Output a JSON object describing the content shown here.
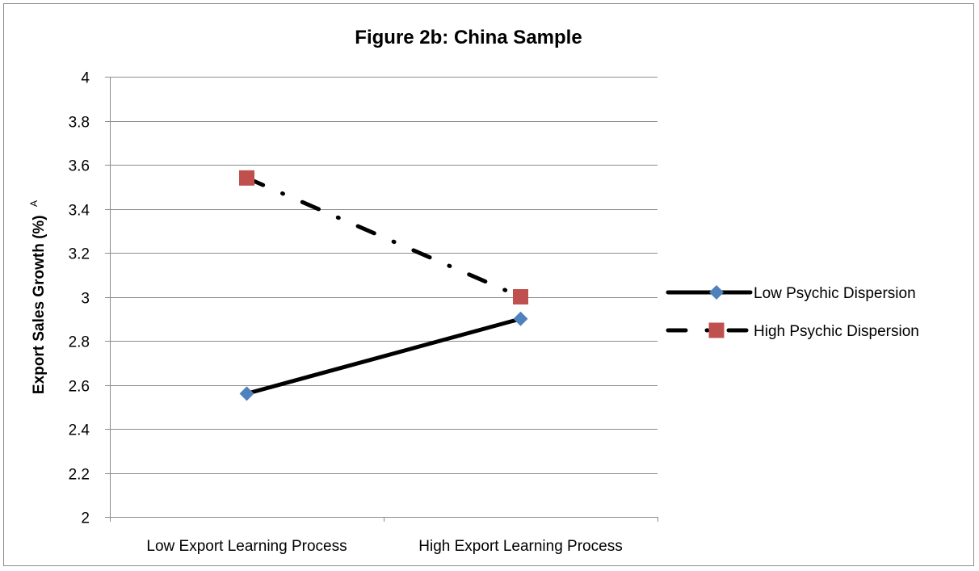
{
  "chart_data": {
    "type": "line",
    "title": "Figure 2b: China Sample",
    "xlabel": "",
    "ylabel": "Export Sales Growth (%)",
    "ylabel_superscript": "A",
    "categories": [
      "Low Export Learning Process",
      "High Export Learning Process"
    ],
    "ylim": [
      2,
      4
    ],
    "yticks": [
      2,
      2.2,
      2.4,
      2.6,
      2.8,
      3,
      3.2,
      3.4,
      3.6,
      3.8,
      4
    ],
    "ytick_labels": [
      "2",
      "2.2",
      "2.4",
      "2.6",
      "2.8",
      "3",
      "3.2",
      "3.4",
      "3.6",
      "3.8",
      "4"
    ],
    "grid": true,
    "legend_position": "right",
    "series": [
      {
        "name": "Low Psychic Dispersion",
        "values": [
          2.56,
          2.9
        ],
        "color": "#000000",
        "marker": "diamond",
        "marker_color": "#4F81BD",
        "line_style": "solid"
      },
      {
        "name": "High Psychic Dispersion",
        "values": [
          3.54,
          3.0
        ],
        "color": "#000000",
        "marker": "square",
        "marker_color": "#C0504D",
        "line_style": "dash-dot"
      }
    ]
  }
}
